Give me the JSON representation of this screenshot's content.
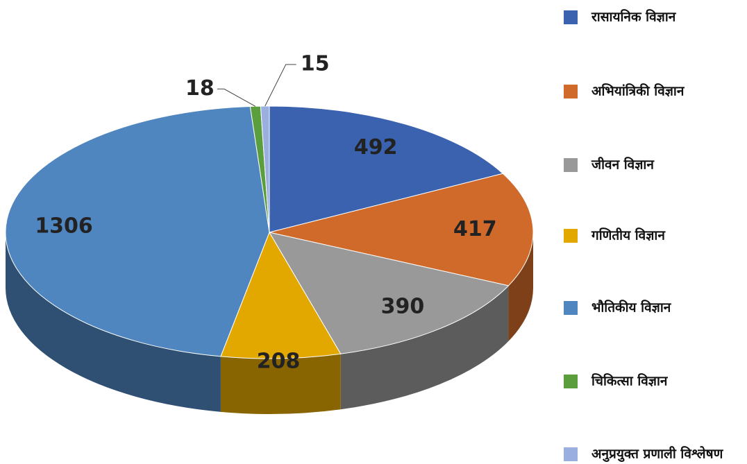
{
  "chart_data": {
    "type": "pie",
    "categories": [
      "रासायनिक विज्ञान",
      "अभियांत्रिकी विज्ञान",
      "जीवन विज्ञान",
      "गणितीय विज्ञान",
      "भौतिकीय विज्ञान",
      "चिकित्सा विज्ञान",
      "अनुप्रयुक्त प्रणाली विश्लेषण"
    ],
    "values": [
      492,
      417,
      390,
      208,
      1306,
      18,
      15
    ],
    "colors": [
      "#3a62ae",
      "#d06a2a",
      "#999999",
      "#e3a800",
      "#4f86bf",
      "#5a9e3e",
      "#9aaee0"
    ],
    "legend": "right"
  }
}
